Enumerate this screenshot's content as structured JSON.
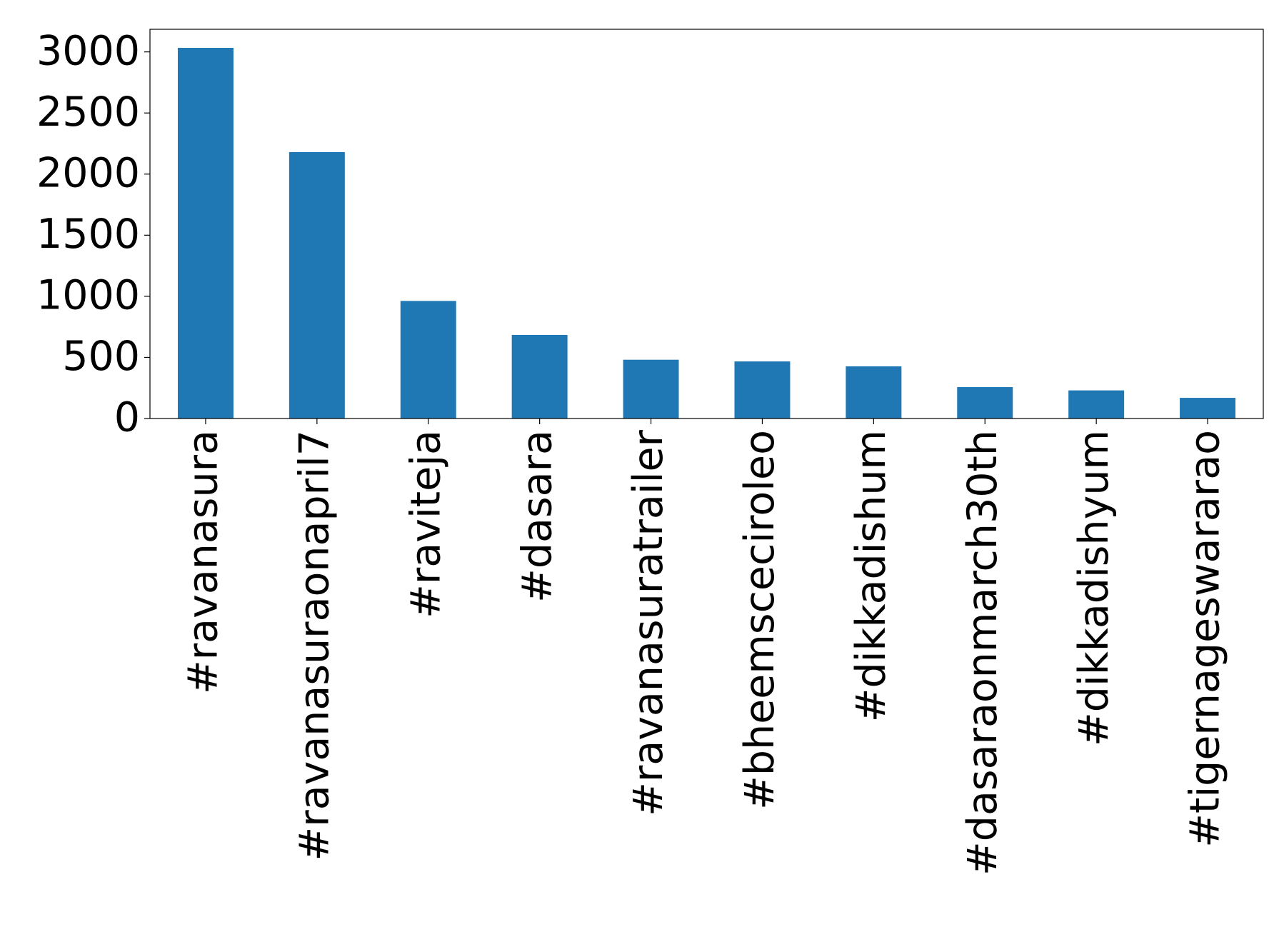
{
  "chart_data": {
    "type": "bar",
    "categories": [
      "#ravanasura",
      "#ravanasuraonapril7",
      "#raviteja",
      "#dasara",
      "#ravanasuratrailer",
      "#bheemsceciroleo",
      "#dikkadishum",
      "#dasaraonmarch30th",
      "#dikkadishyum",
      "#tigernageswararao"
    ],
    "values": [
      3033,
      2180,
      962,
      684,
      481,
      467,
      427,
      257,
      230,
      169
    ],
    "color": "#1f77b4",
    "ylim": [
      0,
      3185
    ],
    "yticks": [
      0,
      500,
      1000,
      1500,
      2000,
      2500,
      3000
    ],
    "grid": false
  }
}
